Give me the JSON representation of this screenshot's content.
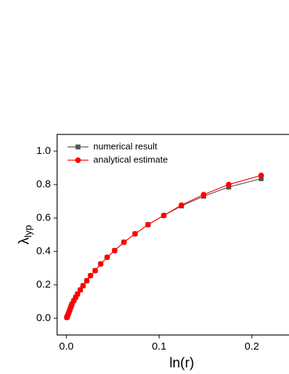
{
  "chart_data": {
    "type": "line",
    "x_label": "ln(r)",
    "y_label": "λ",
    "y_label_sub": "lyp",
    "xlim": [
      -0.01,
      0.24
    ],
    "ylim": [
      -0.1,
      1.1
    ],
    "xticks": [
      {
        "value": 0,
        "label": "0.0"
      },
      {
        "value": 0.1,
        "label": "0.1"
      },
      {
        "value": 0.2,
        "label": "0.2"
      }
    ],
    "yticks": [
      {
        "value": 0,
        "label": "0.0"
      },
      {
        "value": 0.2,
        "label": "0.2"
      },
      {
        "value": 0.4,
        "label": "0.4"
      },
      {
        "value": 0.6,
        "label": "0.6"
      },
      {
        "value": 0.8,
        "label": "0.8"
      },
      {
        "value": 1.0,
        "label": "1.0"
      }
    ],
    "legend": "top-left",
    "series": [
      {
        "name": "numerical result",
        "color": "#555555",
        "marker": "square",
        "x": [
          0.0005,
          0.001,
          0.002,
          0.003,
          0.004,
          0.005,
          0.006,
          0.008,
          0.01,
          0.012,
          0.015,
          0.018,
          0.022,
          0.026,
          0.031,
          0.037,
          0.044,
          0.052,
          0.062,
          0.074,
          0.088,
          0.105,
          0.124,
          0.148,
          0.175,
          0.21
        ],
        "values": [
          0.005,
          0.01,
          0.025,
          0.04,
          0.055,
          0.07,
          0.085,
          0.105,
          0.125,
          0.145,
          0.17,
          0.195,
          0.225,
          0.255,
          0.285,
          0.325,
          0.365,
          0.405,
          0.455,
          0.505,
          0.56,
          0.615,
          0.672,
          0.73,
          0.785,
          0.835
        ]
      },
      {
        "name": "analytical estimate",
        "color": "#ff0000",
        "marker": "circle",
        "x": [
          0.0005,
          0.001,
          0.002,
          0.003,
          0.004,
          0.005,
          0.006,
          0.008,
          0.01,
          0.012,
          0.015,
          0.018,
          0.022,
          0.026,
          0.031,
          0.037,
          0.044,
          0.052,
          0.062,
          0.074,
          0.088,
          0.105,
          0.124,
          0.148,
          0.175,
          0.21
        ],
        "values": [
          0.005,
          0.01,
          0.025,
          0.04,
          0.055,
          0.07,
          0.085,
          0.105,
          0.125,
          0.145,
          0.17,
          0.195,
          0.225,
          0.255,
          0.285,
          0.325,
          0.365,
          0.405,
          0.455,
          0.505,
          0.56,
          0.615,
          0.677,
          0.74,
          0.8,
          0.855
        ]
      }
    ]
  }
}
